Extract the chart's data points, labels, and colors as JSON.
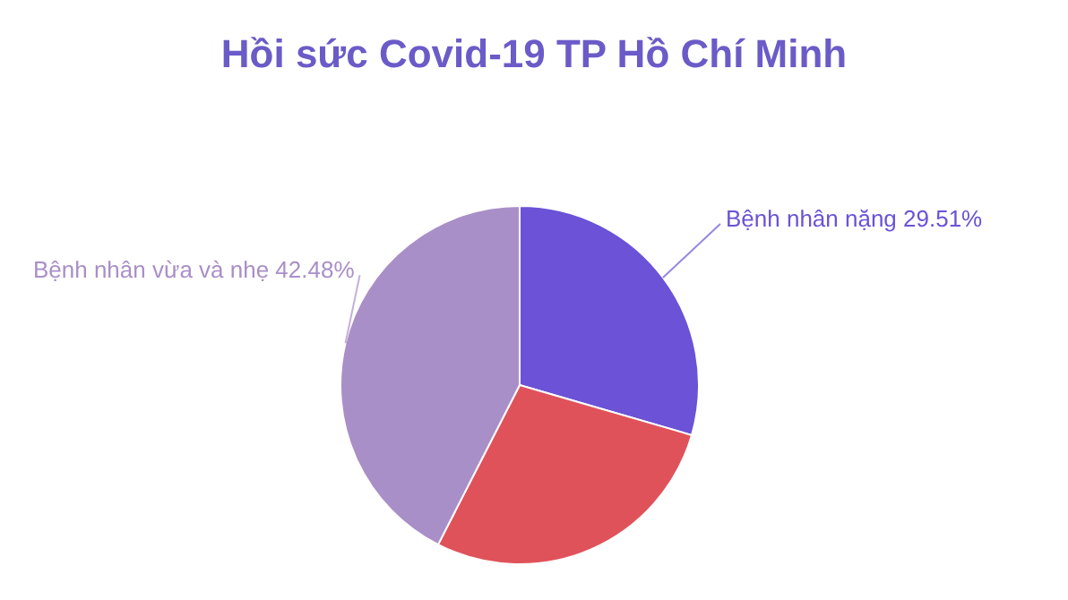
{
  "chart_data": {
    "type": "pie",
    "title": "Hồi sức Covid-19 TP Hồ Chí Minh",
    "categories": [
      "Bệnh nhân nặng",
      null,
      "Bệnh nhân vừa và nhẹ"
    ],
    "values": [
      29.51,
      28.01,
      42.48
    ],
    "colors": [
      "#6b52d6",
      "#e0525a",
      "#a98fc8"
    ],
    "value_labels": [
      "29.51%",
      null,
      "42.48%"
    ],
    "legend": false
  }
}
